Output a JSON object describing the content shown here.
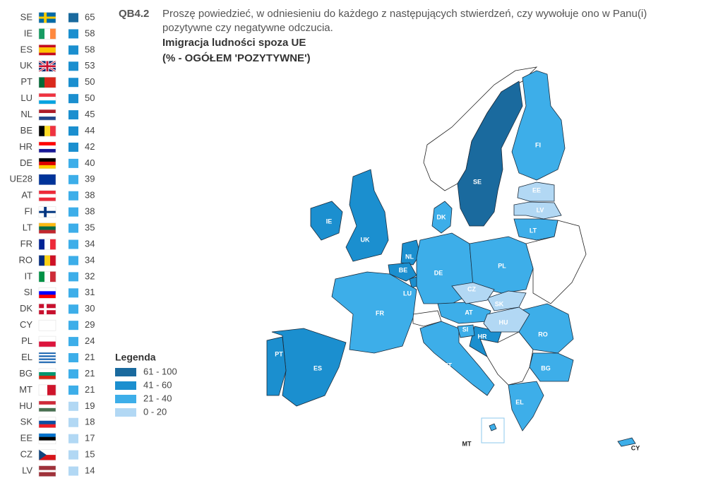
{
  "header": {
    "code": "QB4.2",
    "question": [
      "Proszę powiedzieć, w odniesieniu do każdego z następujących stwierdzeń, czy wywołuje ono w Panu(i)",
      "pozytywne czy negatywne odczucia."
    ],
    "topic": "Imigracja ludności spoza UE",
    "measure": "(% - OGÓŁEM 'POZYTYWNE')"
  },
  "countries": [
    {
      "code": "SE",
      "value": 65
    },
    {
      "code": "IE",
      "value": 58
    },
    {
      "code": "ES",
      "value": 58
    },
    {
      "code": "UK",
      "value": 53
    },
    {
      "code": "PT",
      "value": 50
    },
    {
      "code": "LU",
      "value": 50
    },
    {
      "code": "NL",
      "value": 45
    },
    {
      "code": "BE",
      "value": 44
    },
    {
      "code": "HR",
      "value": 42
    },
    {
      "code": "DE",
      "value": 40
    },
    {
      "code": "UE28",
      "value": 39
    },
    {
      "code": "AT",
      "value": 38
    },
    {
      "code": "FI",
      "value": 38
    },
    {
      "code": "LT",
      "value": 35
    },
    {
      "code": "FR",
      "value": 34
    },
    {
      "code": "RO",
      "value": 34
    },
    {
      "code": "IT",
      "value": 32
    },
    {
      "code": "SI",
      "value": 31
    },
    {
      "code": "DK",
      "value": 30
    },
    {
      "code": "CY",
      "value": 29
    },
    {
      "code": "PL",
      "value": 24
    },
    {
      "code": "EL",
      "value": 21
    },
    {
      "code": "BG",
      "value": 21
    },
    {
      "code": "MT",
      "value": 21
    },
    {
      "code": "HU",
      "value": 19
    },
    {
      "code": "SK",
      "value": 18
    },
    {
      "code": "EE",
      "value": 17
    },
    {
      "code": "CZ",
      "value": 15
    },
    {
      "code": "LV",
      "value": 14
    }
  ],
  "legend": {
    "title": "Legenda",
    "items": [
      {
        "label": "61 - 100",
        "min": 61,
        "max": 100,
        "color": "#1a6a9e"
      },
      {
        "label": "41 - 60",
        "min": 41,
        "max": 60,
        "color": "#1b8fcf"
      },
      {
        "label": "21 - 40",
        "min": 21,
        "max": 40,
        "color": "#3daee9"
      },
      {
        "label": "0 - 20",
        "min": 0,
        "max": 20,
        "color": "#b2d8f4"
      }
    ]
  }
}
